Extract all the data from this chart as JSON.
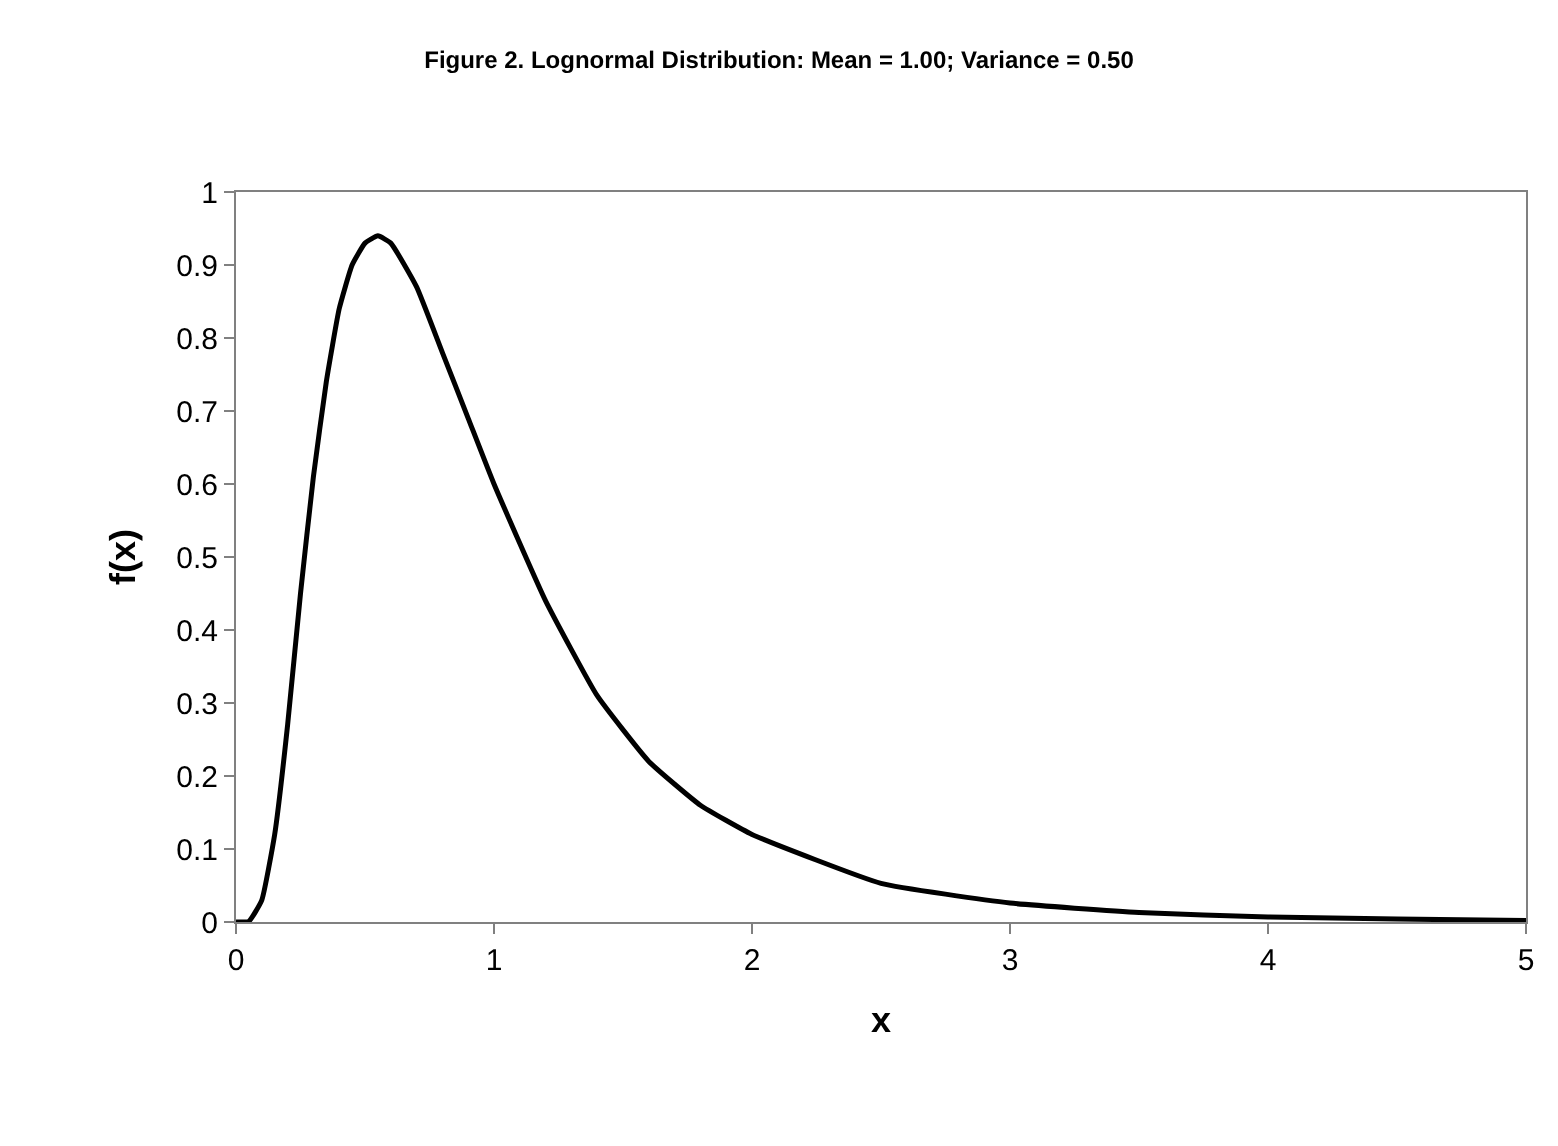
{
  "chart_data": {
    "type": "line",
    "title": "Figure 2. Lognormal Distribution: Mean = 1.00; Variance = 0.50",
    "xlabel": "x",
    "ylabel": "f(x)",
    "x": [
      0,
      0.05,
      0.1,
      0.15,
      0.2,
      0.25,
      0.3,
      0.35,
      0.4,
      0.45,
      0.5,
      0.55,
      0.6,
      0.7,
      0.8,
      0.9,
      1.0,
      1.2,
      1.4,
      1.6,
      1.8,
      2.0,
      2.5,
      3.0,
      3.5,
      4.0,
      4.5,
      5.0
    ],
    "series": [
      {
        "color": "#000000",
        "values": [
          0,
          0.001,
          0.03,
          0.12,
          0.27,
          0.45,
          0.61,
          0.74,
          0.84,
          0.9,
          0.93,
          0.94,
          0.93,
          0.87,
          0.78,
          0.69,
          0.6,
          0.44,
          0.31,
          0.22,
          0.16,
          0.12,
          0.053,
          0.026,
          0.013,
          0.007,
          0.004,
          0.002
        ]
      }
    ],
    "xlim": [
      0,
      5
    ],
    "xticks": [
      0,
      1,
      2,
      3,
      4,
      5
    ],
    "ylim": [
      0,
      1
    ],
    "yticks": [
      0,
      0.1,
      0.2,
      0.3,
      0.4,
      0.5,
      0.6,
      0.7,
      0.8,
      0.9,
      1
    ],
    "marker": "none",
    "line_style": "solid"
  }
}
